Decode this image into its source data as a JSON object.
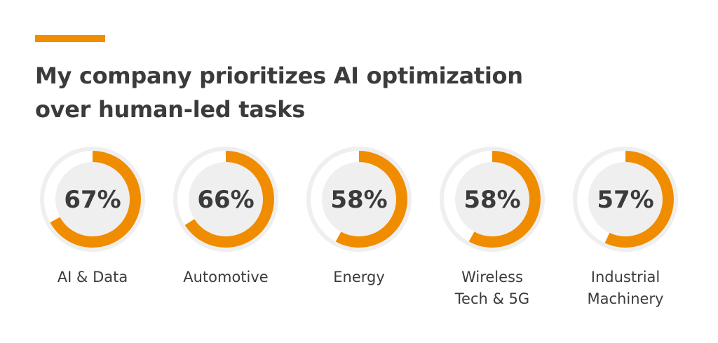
{
  "header": {
    "title_line1": "My company prioritizes AI optimization",
    "title_line2": "over human-led tasks"
  },
  "colors": {
    "accent": "#f08c00",
    "track": "#efefef",
    "text": "#3b3b3b"
  },
  "chart_data": {
    "type": "donut",
    "title": "My company prioritizes AI optimization over human-led tasks",
    "unit": "%",
    "categories": [
      "AI & Data",
      "Automotive",
      "Energy",
      "Wireless Tech & 5G",
      "Industrial Machinery"
    ],
    "values": [
      67,
      66,
      58,
      58,
      57
    ],
    "value_labels": [
      "67%",
      "66%",
      "58%",
      "58%",
      "57%"
    ],
    "label_lines": [
      "AI & Data",
      "Automotive",
      "Energy",
      "Wireless\nTech & 5G",
      "Industrial\nMachinery"
    ]
  }
}
